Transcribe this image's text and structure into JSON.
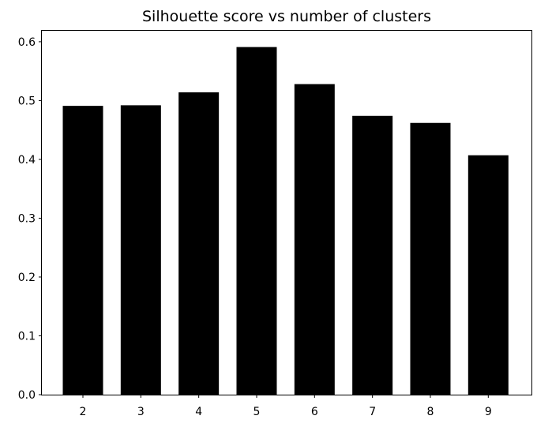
{
  "chart_data": {
    "type": "bar",
    "title": "Silhouette score vs number of clusters",
    "xlabel": "",
    "ylabel": "",
    "categories": [
      "2",
      "3",
      "4",
      "5",
      "6",
      "7",
      "8",
      "9"
    ],
    "values": [
      0.491,
      0.492,
      0.514,
      0.591,
      0.528,
      0.474,
      0.462,
      0.407
    ],
    "ylim": [
      0.0,
      0.62
    ],
    "yticks": [
      "0.0",
      "0.1",
      "0.2",
      "0.3",
      "0.4",
      "0.5",
      "0.6"
    ],
    "grid": false,
    "bar_color": "#000000"
  }
}
